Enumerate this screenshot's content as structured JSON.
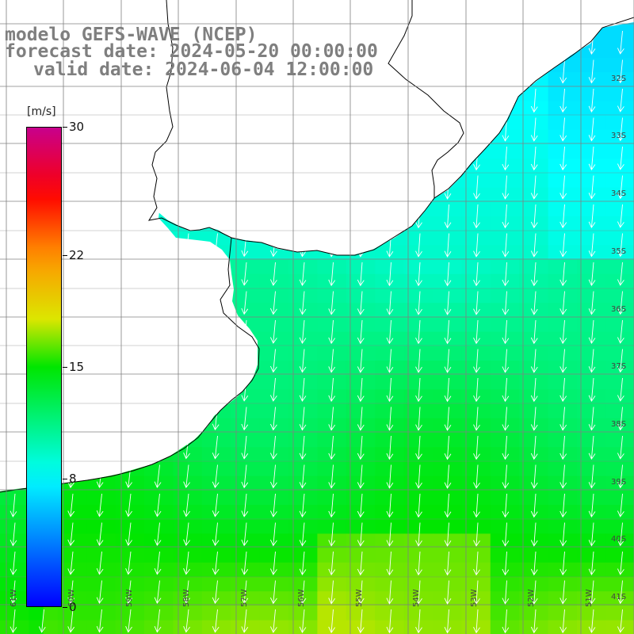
{
  "title": {
    "line1": "modelo GEFS-WAVE (NCEP)",
    "line2": "forecast date: 2024-05-20 00:00:00",
    "line3": "valid date: 2024-06-04 12:00:00"
  },
  "colorbar": {
    "unit": "[m/s]",
    "min": 0,
    "max": 30,
    "ticks": [
      {
        "value": 30,
        "label": "30"
      },
      {
        "value": 22,
        "label": "22"
      },
      {
        "value": 15,
        "label": "15"
      },
      {
        "value": 8,
        "label": "8"
      },
      {
        "value": 0,
        "label": "0"
      }
    ]
  },
  "map": {
    "variable": "wind speed with direction arrows",
    "lon_range": [
      -61.2,
      -50.4
    ],
    "lat_range": [
      -41.3,
      -30.7
    ],
    "lat_labels": [
      "32S",
      "33S",
      "34S",
      "35S",
      "36S",
      "37S",
      "38S",
      "39S",
      "40S",
      "41S"
    ],
    "lon_labels": [
      "61W",
      "60W",
      "59W",
      "58W",
      "57W",
      "56W",
      "55W",
      "54W",
      "53W",
      "52W",
      "51W"
    ],
    "colors": {
      "land": "#ffffff",
      "coastline": "#000000",
      "grid": "#808080",
      "arrow": "#ffffff",
      "title": "#7f7f7f"
    }
  }
}
